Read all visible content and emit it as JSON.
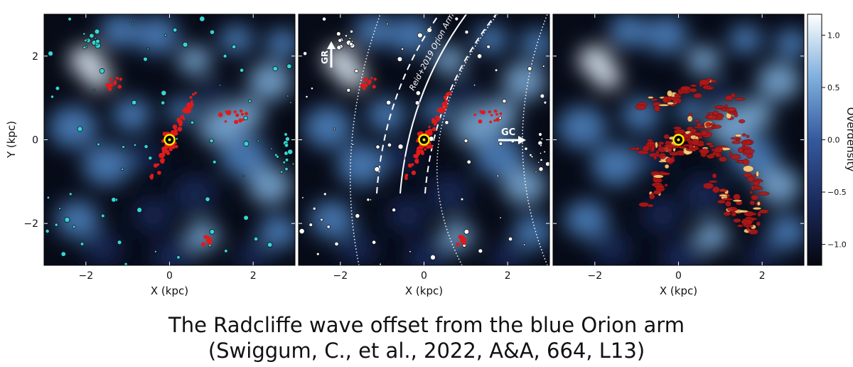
{
  "caption": {
    "line1": "The Radcliffe  wave offset from the blue Orion arm",
    "line2": "(Swiggum, C., et al., 2022, A&A, 664, L13)"
  },
  "colors": {
    "background_map": "#0a0f1e",
    "density_low": "#1b2a5c",
    "density_mid": "#4f86c6",
    "density_high": "#e8f4ff",
    "cluster_red": "#e01a1a",
    "cluster_cyan": "#33d6d6",
    "cluster_white": "#ffffff",
    "sun_marker": "#ffee00",
    "dust_red": "#b01818"
  },
  "chart_data": [
    {
      "type": "heatmap",
      "panel": "left",
      "xlabel": "X (kpc)",
      "ylabel": "Y (kpc)",
      "xlim": [
        -3,
        3
      ],
      "ylim": [
        -3,
        3
      ],
      "xticks": [
        -2,
        0,
        2
      ],
      "yticks": [
        -2,
        0,
        2
      ],
      "xtick_labels": [
        "−2",
        "0",
        "2"
      ],
      "ytick_labels": [
        "−2",
        "0",
        "2"
      ],
      "sun": [
        0,
        0
      ],
      "overlays": [
        "red clusters",
        "cyan clusters"
      ]
    },
    {
      "type": "heatmap",
      "panel": "middle",
      "xlabel": "X (kpc)",
      "xlim": [
        -3,
        3
      ],
      "ylim": [
        -3,
        3
      ],
      "xticks": [
        -2,
        0,
        2
      ],
      "xtick_labels": [
        "−2",
        "0",
        "2"
      ],
      "sun": [
        0,
        0
      ],
      "annotations": [
        "Reid+2019 Orion Arm",
        "GC",
        "GR"
      ],
      "overlays": [
        "red clusters",
        "white clusters",
        "arm centerline",
        "arm width bounds",
        "galactocentric circles"
      ]
    },
    {
      "type": "heatmap",
      "panel": "right",
      "xlabel": "X (kpc)",
      "xlim": [
        -3,
        3
      ],
      "ylim": [
        -3,
        3
      ],
      "xticks": [
        -2,
        0,
        2
      ],
      "xtick_labels": [
        "−2",
        "0",
        "2"
      ],
      "sun": [
        0,
        0
      ],
      "overlays": [
        "3D dust map"
      ],
      "colorbar": {
        "label": "Overdensity",
        "range": [
          -1.2,
          1.2
        ],
        "ticks": [
          1.0,
          0.5,
          0.0,
          -0.5,
          -1.0
        ],
        "tick_labels": [
          "1.0",
          "0.5",
          "0.0",
          "−0.5",
          "−1.0"
        ]
      }
    }
  ]
}
